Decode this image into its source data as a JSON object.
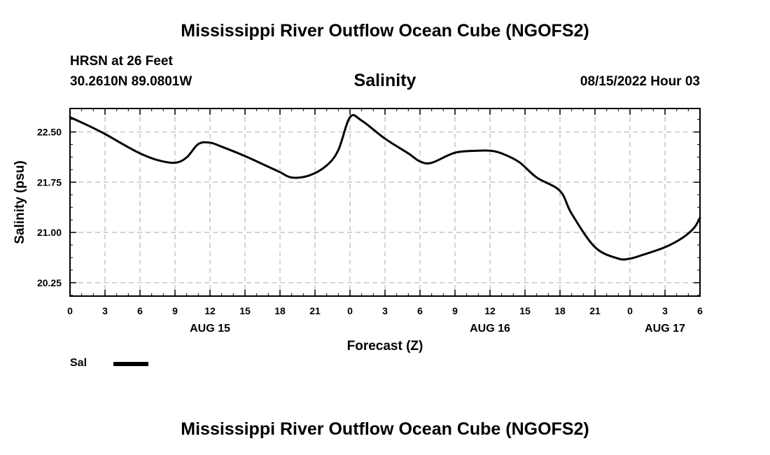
{
  "header": {
    "title": "Mississippi River Outflow Ocean Cube (NGOFS2)",
    "station": "HRSN at 26 Feet",
    "coordinates": "30.2610N  89.0801W",
    "subtitle": "Salinity",
    "datetime": "08/15/2022 Hour 03"
  },
  "footer": {
    "title": "Mississippi River Outflow Ocean Cube (NGOFS2)"
  },
  "legend": {
    "label": "Sal",
    "color": "#000000"
  },
  "chart_data": {
    "type": "line",
    "title": "Salinity",
    "xlabel": "Forecast (Z)",
    "ylabel": "Salinity (psu)",
    "xlim": [
      0,
      54
    ],
    "ylim": [
      20.05,
      22.85
    ],
    "yticks": [
      20.25,
      21.0,
      21.75,
      22.5
    ],
    "ytick_labels": [
      "20.25",
      "21.00",
      "21.75",
      "22.50"
    ],
    "xticks": [
      0,
      3,
      6,
      9,
      12,
      15,
      18,
      21,
      24,
      27,
      30,
      33,
      36,
      39,
      42,
      45,
      48,
      51,
      54
    ],
    "xtick_labels": [
      "0",
      "3",
      "6",
      "9",
      "12",
      "15",
      "18",
      "21",
      "0",
      "3",
      "6",
      "9",
      "12",
      "15",
      "18",
      "21",
      "0",
      "3",
      "6"
    ],
    "date_labels": [
      {
        "x": 12,
        "label": "AUG 15"
      },
      {
        "x": 36,
        "label": "AUG 16"
      },
      {
        "x": 51,
        "label": "AUG 17"
      }
    ],
    "grid": true,
    "series": [
      {
        "name": "Sal",
        "color": "#000000",
        "x": [
          0,
          1.5,
          3,
          4.5,
          6,
          7.5,
          9,
          10,
          11,
          12,
          13,
          15,
          17,
          18,
          19,
          20.5,
          22,
          23,
          24,
          25,
          27,
          29,
          30,
          31,
          33,
          35,
          36,
          37,
          38.5,
          40,
          42,
          43,
          45,
          47,
          48,
          49,
          51,
          52.5,
          53.5,
          54
        ],
        "values": [
          22.72,
          22.6,
          22.47,
          22.32,
          22.18,
          22.08,
          22.04,
          22.12,
          22.32,
          22.34,
          22.28,
          22.14,
          21.98,
          21.9,
          21.82,
          21.85,
          22.0,
          22.23,
          22.72,
          22.67,
          22.4,
          22.18,
          22.06,
          22.04,
          22.19,
          22.22,
          22.22,
          22.18,
          22.05,
          21.82,
          21.62,
          21.28,
          20.78,
          20.61,
          20.61,
          20.66,
          20.78,
          20.92,
          21.07,
          21.22
        ]
      }
    ]
  }
}
